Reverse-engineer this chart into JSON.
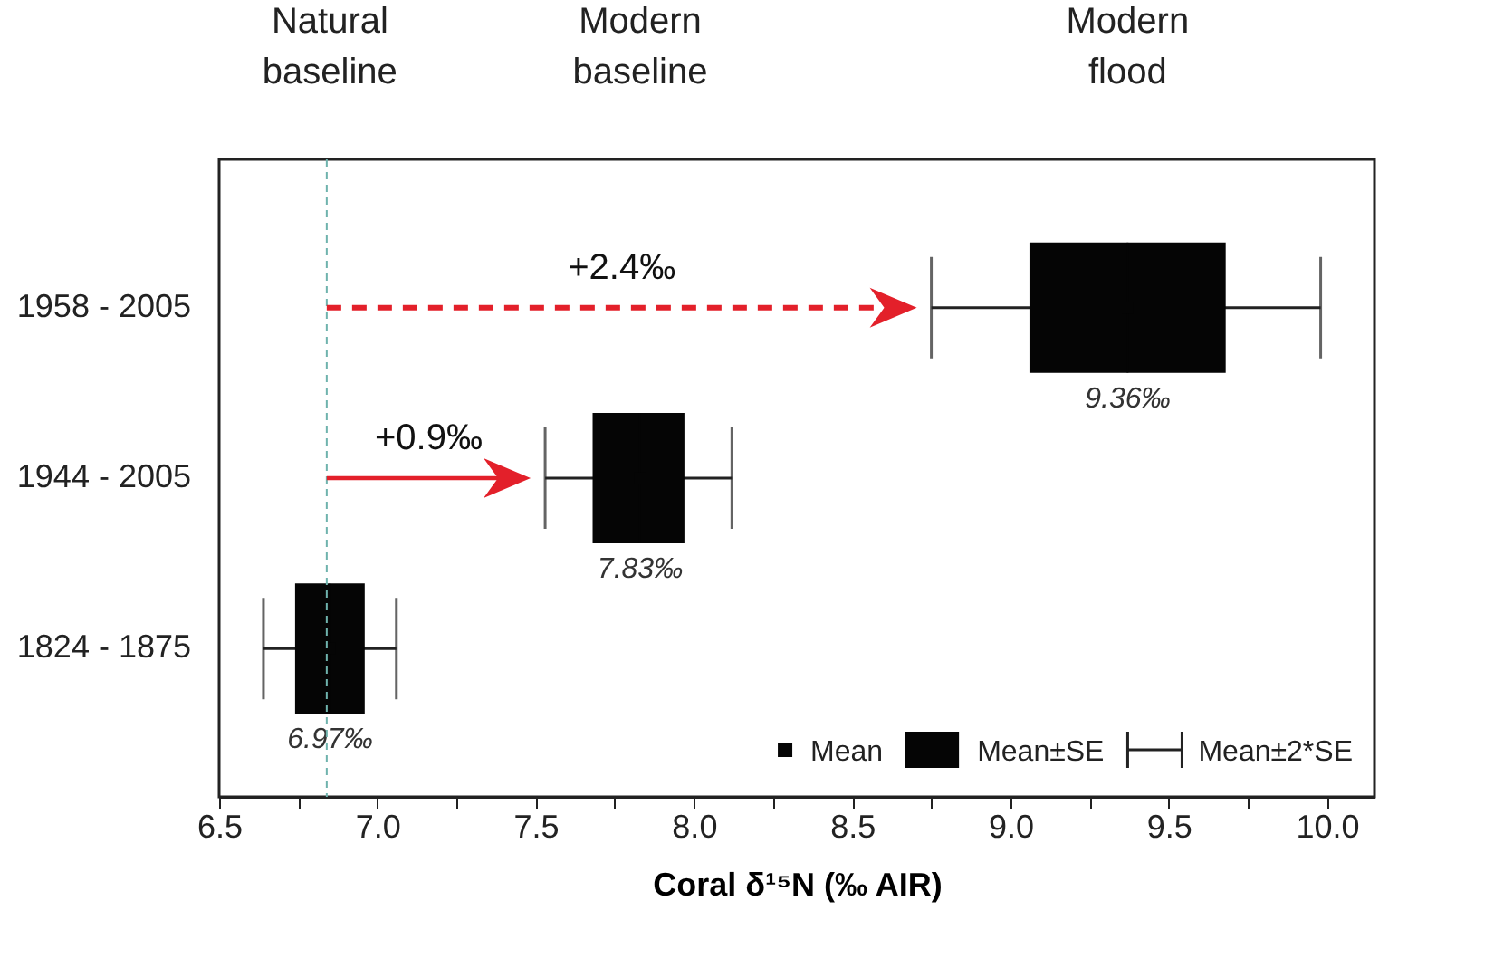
{
  "chart_data": {
    "type": "box",
    "xlabel": "Coral δ¹⁵N (‰ AIR)",
    "categories": [
      "1958 - 2005",
      "1944 - 2005",
      "1824 - 1875"
    ],
    "orientation": "horizontal",
    "boxes": [
      {
        "low": 8.75,
        "q1": 9.06,
        "median": 9.37,
        "q3": 9.68,
        "high": 9.98,
        "mean": 9.37
      },
      {
        "low": 7.53,
        "q1": 7.68,
        "median": 7.83,
        "q3": 7.97,
        "high": 8.12,
        "mean": 7.83
      },
      {
        "low": 6.64,
        "q1": 6.74,
        "median": 6.85,
        "q3": 6.96,
        "high": 7.06,
        "mean": 6.85
      }
    ],
    "value_labels": [
      "9.36‰",
      "7.83‰",
      "6.97‰"
    ],
    "xlim": [
      6.5,
      10.15
    ],
    "xticks": [
      6.5,
      {
        "value": 6.75,
        "label": null
      },
      {
        "value": 7,
        "label": "7.0"
      },
      {
        "value": 7.25,
        "label": null
      },
      7.5,
      {
        "value": 7.75,
        "label": null
      },
      {
        "value": 8,
        "label": "8.0"
      },
      {
        "value": 8.25,
        "label": null
      },
      8.5,
      {
        "value": 8.75,
        "label": null
      },
      {
        "value": 9,
        "label": "9.0"
      },
      {
        "value": 9.25,
        "label": null
      },
      9.5,
      {
        "value": 9.75,
        "label": null
      },
      {
        "value": 10,
        "label": "10.0"
      }
    ],
    "ref_lines": [
      {
        "axis": "x",
        "value": 6.84,
        "color": "#6fb3ad",
        "line_style": "dashed"
      }
    ],
    "annotations": [
      "Modern flood",
      "Modern baseline",
      "Natural baseline",
      "+2.4‰",
      "+0.9‰",
      "Mean",
      "Mean±SE",
      "Mean±2*SE"
    ],
    "grid": false
  }
}
